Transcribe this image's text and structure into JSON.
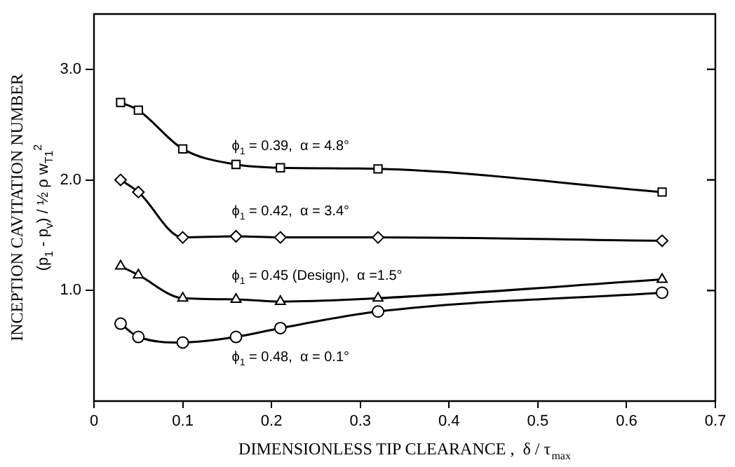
{
  "chart_data": {
    "type": "line",
    "xlabel": "DIMENSIONLESS TIP CLEARANCE ,  δ / τ$_{max}$",
    "ylabel": "INCEPTION CAVITATION NUMBER\n(p$_{1}$ - p$_{v}$) / ½ ρ w$_{T1}$$^{2}$",
    "xlim": [
      0,
      0.7
    ],
    "xticks": [
      0,
      0.1,
      0.2,
      0.3,
      0.4,
      0.5,
      0.6,
      0.7
    ],
    "ylim": [
      0,
      3.5
    ],
    "yticks": [
      {
        "value": 1,
        "label": "1.0"
      },
      {
        "value": 2,
        "label": "2.0"
      },
      {
        "value": 3,
        "label": "3.0"
      }
    ],
    "grid": false,
    "legend": false,
    "line_style": "solid",
    "series": [
      {
        "name": "ϕ$_{1}$ = 0.39,  α = 4.8°",
        "color": "#000000",
        "marker": "square",
        "x": [
          0.03,
          0.05,
          0.1,
          0.16,
          0.21,
          0.32,
          0.64
        ],
        "values": [
          2.7,
          2.63,
          2.28,
          2.14,
          2.11,
          2.1,
          1.89
        ]
      },
      {
        "name": "ϕ$_{1}$ = 0.42,  α = 3.4°",
        "color": "#000000",
        "marker": "diamond",
        "x": [
          0.03,
          0.05,
          0.1,
          0.16,
          0.21,
          0.32,
          0.64
        ],
        "values": [
          2.0,
          1.89,
          1.48,
          1.49,
          1.48,
          1.48,
          1.45
        ]
      },
      {
        "name": "ϕ$_{1}$ = 0.45 (Design),  α =1.5°",
        "color": "#000000",
        "marker": "triangle",
        "x": [
          0.03,
          0.05,
          0.1,
          0.16,
          0.21,
          0.32,
          0.64
        ],
        "values": [
          1.22,
          1.14,
          0.93,
          0.92,
          0.9,
          0.93,
          1.1
        ]
      },
      {
        "name": "ϕ$_{1}$ = 0.48,  α = 0.1°",
        "color": "#000000",
        "marker": "circle",
        "x": [
          0.03,
          0.05,
          0.1,
          0.16,
          0.21,
          0.32,
          0.64
        ],
        "values": [
          0.7,
          0.58,
          0.53,
          0.58,
          0.66,
          0.81,
          0.98
        ]
      }
    ]
  }
}
